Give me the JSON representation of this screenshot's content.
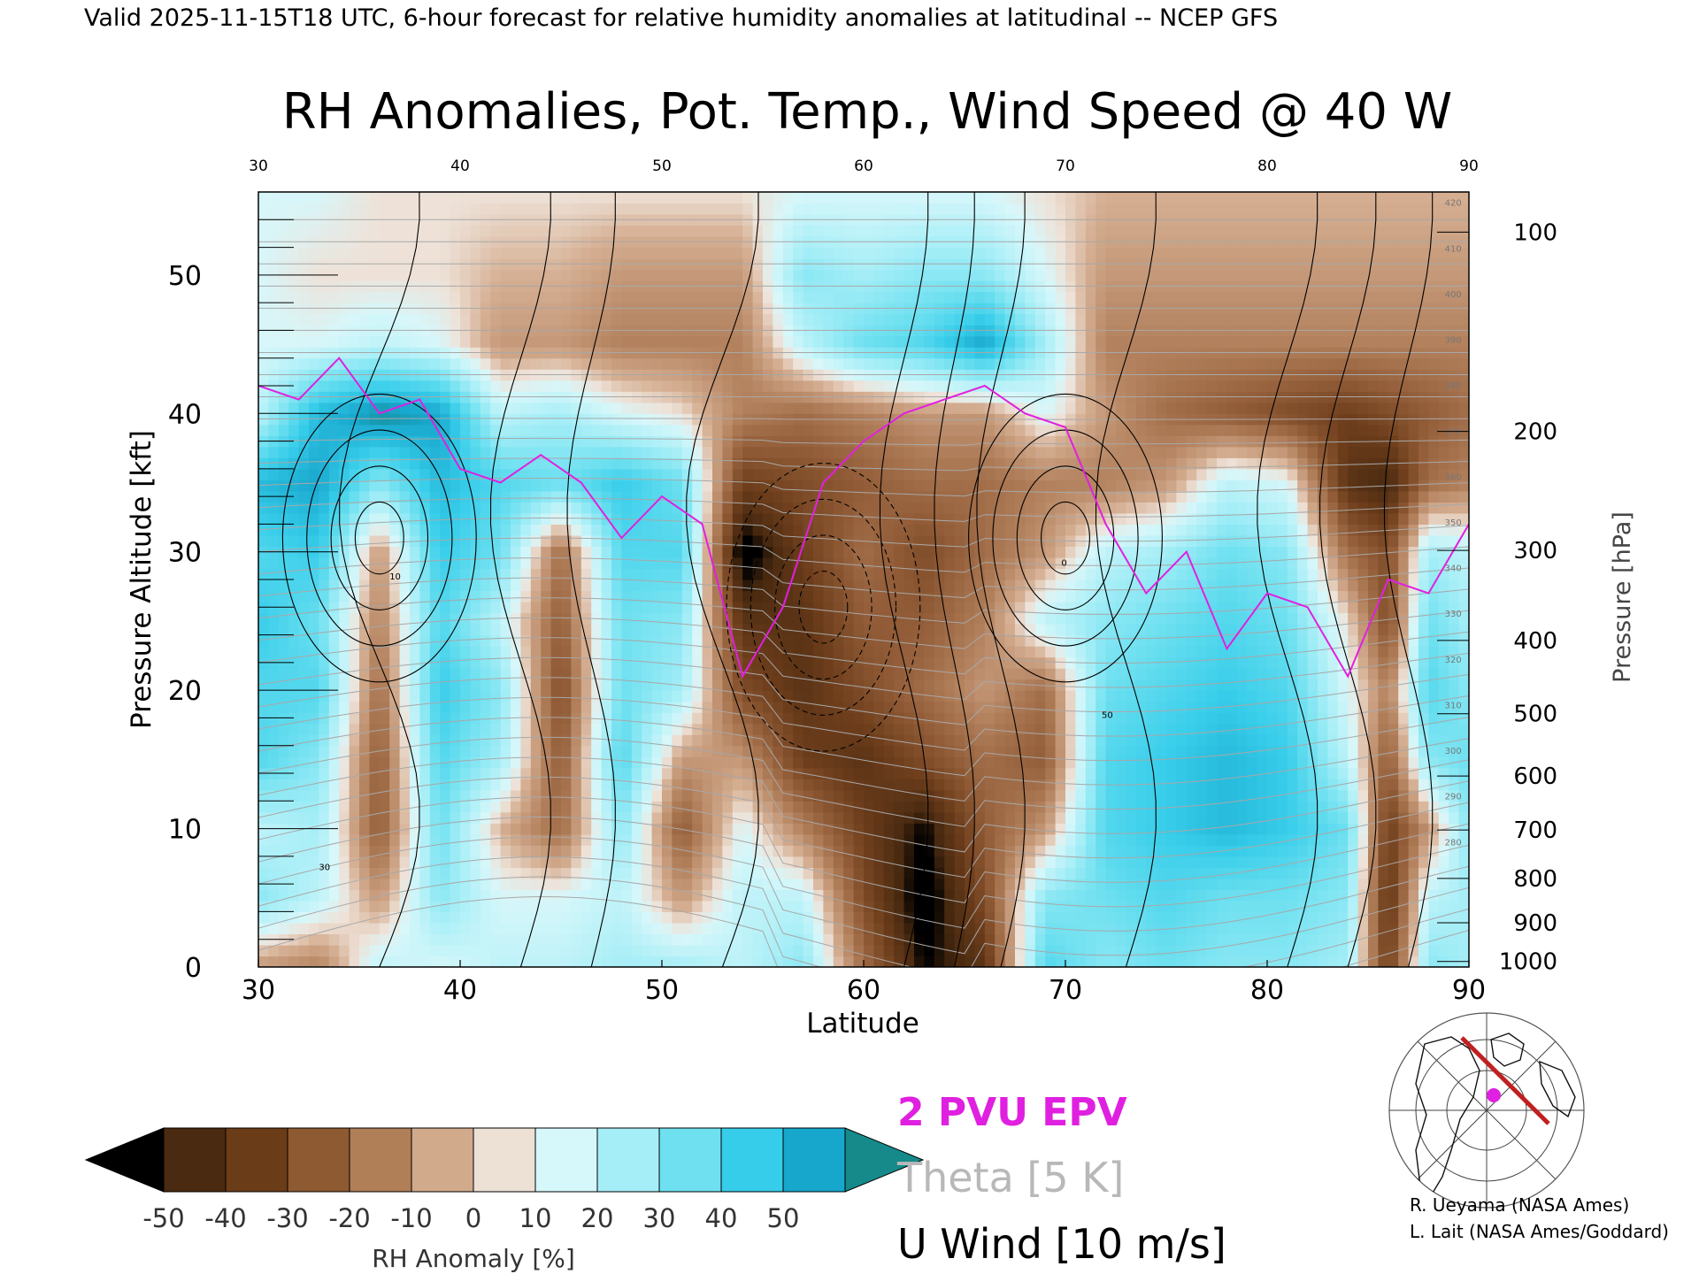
{
  "header": {
    "valid_line": "Valid 2025-11-15T18 UTC, 6-hour forecast for relative humidity anomalies at latitudinal -- NCEP GFS",
    "title": "RH Anomalies, Pot. Temp., Wind Speed @ 40 W"
  },
  "chart_data": {
    "type": "heatmap",
    "title": "RH Anomalies, Pot. Temp., Wind Speed @ 40 W",
    "xlabel": "Latitude",
    "ylabel": "Pressure Altitude [kft]",
    "y2label": "Pressure [hPa]",
    "xlim": [
      30,
      90
    ],
    "ylim": [
      0,
      56
    ],
    "x_ticks": [
      "30",
      "40",
      "50",
      "60",
      "70",
      "80",
      "90"
    ],
    "y_ticks": [
      "0",
      "10",
      "20",
      "30",
      "40",
      "50"
    ],
    "pressure_ticks": [
      {
        "hpa": "1000",
        "kft": 0.4
      },
      {
        "hpa": "900",
        "kft": 3.2
      },
      {
        "hpa": "800",
        "kft": 6.4
      },
      {
        "hpa": "700",
        "kft": 9.9
      },
      {
        "hpa": "600",
        "kft": 13.8
      },
      {
        "hpa": "500",
        "kft": 18.3
      },
      {
        "hpa": "400",
        "kft": 23.6
      },
      {
        "hpa": "300",
        "kft": 30.1
      },
      {
        "hpa": "200",
        "kft": 38.7
      },
      {
        "hpa": "100",
        "kft": 53.1
      }
    ],
    "rh_profile": {
      "note": "approximate RH anomaly [%] by latitude band, rows from surface (0 kft) up to 56 kft",
      "heights_kft": [
        0,
        5,
        10,
        15,
        20,
        25,
        30,
        35,
        40,
        45,
        50,
        56
      ],
      "bands": [
        {
          "lat": 30,
          "values": [
            -10,
            20,
            10,
            30,
            30,
            35,
            30,
            40,
            10,
            5,
            5,
            5
          ]
        },
        {
          "lat": 33,
          "values": [
            -15,
            10,
            15,
            20,
            30,
            25,
            35,
            45,
            40,
            5,
            0,
            5
          ]
        },
        {
          "lat": 36,
          "values": [
            10,
            -10,
            -25,
            -25,
            -20,
            -15,
            -10,
            20,
            50,
            10,
            0,
            0
          ]
        },
        {
          "lat": 39,
          "values": [
            5,
            20,
            25,
            30,
            35,
            30,
            35,
            40,
            45,
            5,
            0,
            0
          ]
        },
        {
          "lat": 42,
          "values": [
            10,
            5,
            -5,
            15,
            20,
            10,
            25,
            30,
            10,
            -10,
            -5,
            0
          ]
        },
        {
          "lat": 45,
          "values": [
            10,
            5,
            -20,
            -25,
            -30,
            -25,
            -20,
            25,
            15,
            -10,
            -5,
            0
          ]
        },
        {
          "lat": 48,
          "values": [
            15,
            10,
            20,
            30,
            25,
            25,
            30,
            35,
            5,
            -15,
            -10,
            0
          ]
        },
        {
          "lat": 51,
          "values": [
            15,
            -10,
            -25,
            -10,
            15,
            20,
            30,
            25,
            0,
            -15,
            -10,
            0
          ]
        },
        {
          "lat": 54,
          "values": [
            10,
            10,
            5,
            -10,
            -30,
            -40,
            -55,
            -35,
            -15,
            -15,
            -10,
            0
          ]
        },
        {
          "lat": 57,
          "values": [
            20,
            10,
            -15,
            -35,
            -40,
            -40,
            -35,
            -30,
            -20,
            10,
            20,
            5
          ]
        },
        {
          "lat": 60,
          "values": [
            -20,
            -30,
            -35,
            -40,
            -30,
            -25,
            -20,
            -25,
            -15,
            25,
            15,
            5
          ]
        },
        {
          "lat": 63,
          "values": [
            -50,
            -55,
            -50,
            -30,
            -20,
            -25,
            -30,
            -20,
            -10,
            30,
            20,
            5
          ]
        },
        {
          "lat": 66,
          "values": [
            -40,
            -30,
            -25,
            -20,
            -10,
            -15,
            -20,
            -20,
            -10,
            45,
            20,
            5
          ]
        },
        {
          "lat": 69,
          "values": [
            30,
            20,
            -10,
            -25,
            -20,
            10,
            -10,
            -15,
            5,
            15,
            5,
            0
          ]
        },
        {
          "lat": 72,
          "values": [
            20,
            25,
            30,
            30,
            25,
            20,
            10,
            -15,
            -10,
            -15,
            -10,
            -5
          ]
        },
        {
          "lat": 75,
          "values": [
            25,
            30,
            35,
            35,
            30,
            25,
            15,
            -10,
            -20,
            -15,
            -10,
            -5
          ]
        },
        {
          "lat": 78,
          "values": [
            20,
            25,
            40,
            40,
            35,
            30,
            25,
            10,
            -25,
            -15,
            -10,
            -5
          ]
        },
        {
          "lat": 81,
          "values": [
            20,
            25,
            35,
            35,
            30,
            25,
            20,
            5,
            -30,
            -15,
            -10,
            -5
          ]
        },
        {
          "lat": 84,
          "values": [
            15,
            20,
            25,
            10,
            5,
            0,
            -20,
            -40,
            -35,
            -15,
            -10,
            -5
          ]
        },
        {
          "lat": 86,
          "values": [
            -35,
            -40,
            -35,
            -25,
            -15,
            -30,
            -30,
            -45,
            -30,
            -15,
            -10,
            -5
          ]
        },
        {
          "lat": 88,
          "values": [
            20,
            10,
            -10,
            20,
            30,
            25,
            15,
            -20,
            -25,
            -15,
            -10,
            -5
          ]
        },
        {
          "lat": 90,
          "values": [
            15,
            15,
            20,
            25,
            20,
            15,
            10,
            -15,
            -20,
            -15,
            -10,
            -5
          ]
        }
      ]
    },
    "pv2_line": {
      "name": "2 PVU EPV",
      "color": "#e020e0",
      "lat": [
        30,
        32,
        34,
        36,
        38,
        40,
        42,
        44,
        46,
        48,
        50,
        52,
        54,
        56,
        58,
        60,
        62,
        64,
        66,
        68,
        70,
        72,
        74,
        76,
        78,
        80,
        82,
        84,
        86,
        88,
        90
      ],
      "kft": [
        42,
        41,
        44,
        40,
        41,
        36,
        35,
        37,
        35,
        31,
        34,
        32,
        21,
        26,
        35,
        38,
        40,
        41,
        42,
        40,
        39,
        32,
        27,
        30,
        23,
        27,
        26,
        21,
        28,
        27,
        32
      ]
    },
    "theta_contours": {
      "name": "Theta [5 K]",
      "color": "#a8a8a8",
      "labels": [
        "420",
        "410",
        "400",
        "390",
        "380",
        "370",
        "360",
        "350",
        "340",
        "330",
        "320",
        "310",
        "300",
        "290",
        "280"
      ]
    },
    "u_wind_contours": {
      "name": "U Wind [10 m/s]",
      "color": "#000000",
      "labels": [
        "10",
        "30",
        "0",
        "50"
      ],
      "jets": [
        {
          "lat": 36,
          "kft": 31,
          "max": 30
        },
        {
          "lat": 58,
          "kft": 26,
          "max": -30
        },
        {
          "lat": 70,
          "kft": 31,
          "max": 50
        }
      ]
    },
    "colorbar": {
      "label": "RH Anomaly [%]",
      "ticks": [
        "-50",
        "-40",
        "-30",
        "-20",
        "-10",
        "0",
        "10",
        "20",
        "30",
        "40",
        "50"
      ],
      "colors": [
        "#000000",
        "#4a2a10",
        "#6b3c18",
        "#8e5a32",
        "#b07f58",
        "#d1aa8c",
        "#ede1d6",
        "#d6f8fb",
        "#a6eef7",
        "#6fe0f0",
        "#36cdea",
        "#17a7cd",
        "#168a8a"
      ]
    },
    "legend": {
      "placement": "bottom-center",
      "entries": [
        {
          "label": "2 PVU EPV",
          "color": "#e020e0"
        },
        {
          "label": "Theta [5 K]",
          "color": "#a8a8a8"
        },
        {
          "label": "U Wind [10 m/s]",
          "color": "#000000"
        }
      ]
    }
  },
  "credits": {
    "line1": "R. Ueyama (NASA Ames)",
    "line2": "L. Lait (NASA Ames/Goddard)"
  }
}
